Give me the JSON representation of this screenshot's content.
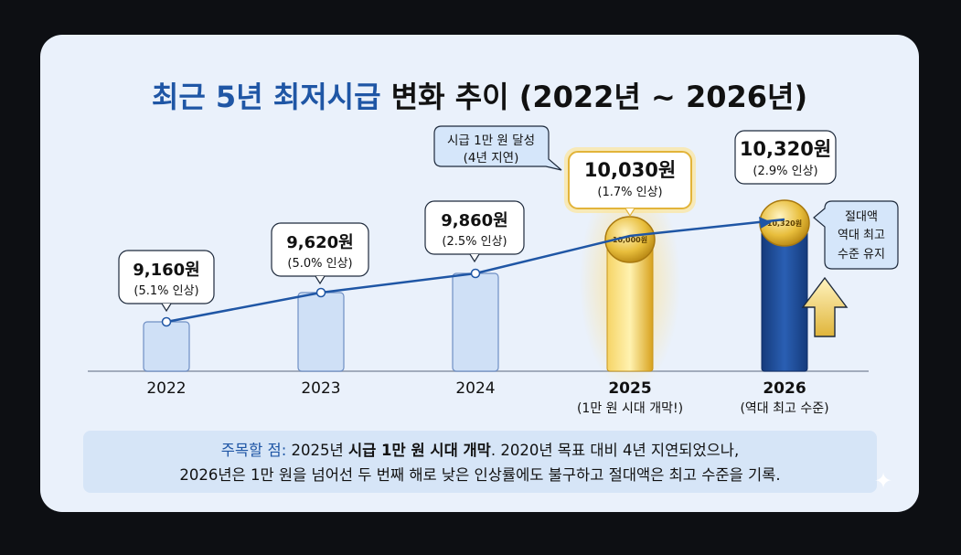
{
  "chart_data": {
    "type": "bar",
    "title": "최근 5년 최저시급 변화 추이 (2022년 ~ 2026년)",
    "title_highlight": "최근 5년 최저시급",
    "title_rest": "변화 추이 (2022년 ~ 2026년)",
    "categories": [
      "2022",
      "2023",
      "2024",
      "2025",
      "2026"
    ],
    "category_sublabels": [
      "",
      "",
      "",
      "(1만 원 시대 개막!)",
      "(역대 최고 수준)"
    ],
    "values": [
      9160,
      9620,
      9860,
      10030,
      10320
    ],
    "value_labels": [
      "9,160원",
      "9,620원",
      "9,860원",
      "10,030원",
      "10,320원"
    ],
    "change_labels": [
      "(5.1% 인상)",
      "(5.0% 인상)",
      "(2.5% 인상)",
      "(1.7% 인상)",
      "(2.9% 인상)"
    ],
    "coin_labels": [
      "",
      "",
      "",
      "10,000원",
      "10,320원"
    ],
    "annotations": {
      "milestone": {
        "line1": "시급 1만 원 달성",
        "line2": "(4년 지연)"
      },
      "record": {
        "line1": "절대액",
        "line2": "역대 최고",
        "line3": "수준 유지"
      }
    },
    "colors": {
      "bar_light": "#cfe0f6",
      "bar_border": "#6f8fc4",
      "bar_gold": "#e7b52a",
      "bar_navy": "#1d4a94",
      "trend_line": "#1f56a5",
      "highlight_text": "#1f56a5"
    },
    "legend": "none",
    "grid": false
  },
  "note": {
    "label": "주목할 점:",
    "text1": " 2025년 ",
    "bold": "시급 1만 원 시대 개막",
    "text2": ". 2020년 목표 대비 4년 지연되었으나,",
    "line2": "2026년은 1만 원을 넘어선 두 번째 해로 낮은 인상률에도 불구하고 절대액은 최고 수준을 기록."
  }
}
